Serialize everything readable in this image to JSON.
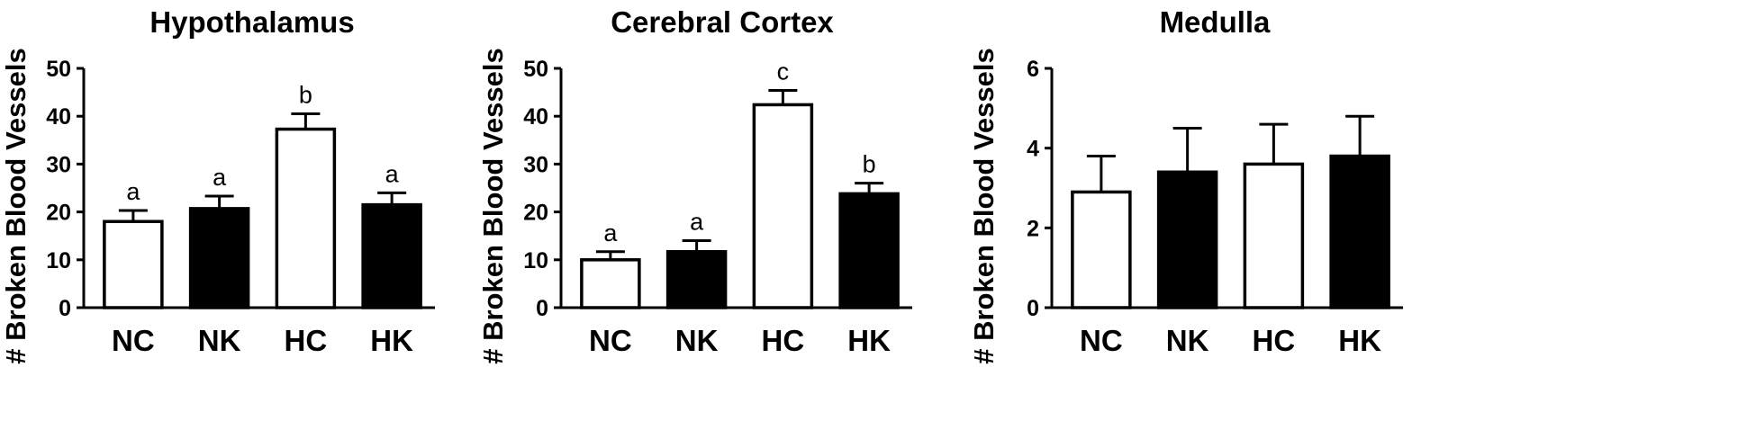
{
  "chart_data": [
    {
      "type": "bar",
      "title": "Hypothalamus",
      "xlabel": "",
      "ylabel": "# Broken Blood Vessels",
      "ylim": [
        0,
        50
      ],
      "yticks": [
        0,
        10,
        20,
        30,
        40,
        50
      ],
      "categories": [
        "NC",
        "NK",
        "HC",
        "HK"
      ],
      "values": [
        18,
        20.7,
        37.3,
        21.5
      ],
      "errors": [
        2.3,
        2.6,
        3.2,
        2.5
      ],
      "fills": [
        "white",
        "black",
        "white",
        "black"
      ],
      "annotations": [
        "a",
        "a",
        "b",
        "a"
      ],
      "grid": false
    },
    {
      "type": "bar",
      "title": "Cerebral Cortex",
      "xlabel": "",
      "ylabel": "# Broken Blood Vessels",
      "ylim": [
        0,
        50
      ],
      "yticks": [
        0,
        10,
        20,
        30,
        40,
        50
      ],
      "categories": [
        "NC",
        "NK",
        "HC",
        "HK"
      ],
      "values": [
        10,
        11.7,
        42.4,
        23.8
      ],
      "errors": [
        1.7,
        2.3,
        3,
        2.2
      ],
      "fills": [
        "white",
        "black",
        "white",
        "black"
      ],
      "annotations": [
        "a",
        "a",
        "c",
        "b"
      ],
      "grid": false
    },
    {
      "type": "bar",
      "title": "Medulla",
      "xlabel": "",
      "ylabel": "# Broken Blood Vessels",
      "ylim": [
        0,
        6
      ],
      "yticks": [
        0,
        2,
        4,
        6
      ],
      "categories": [
        "NC",
        "NK",
        "HC",
        "HK"
      ],
      "values": [
        2.9,
        3.4,
        3.6,
        3.8
      ],
      "errors": [
        0.9,
        1.1,
        1,
        1
      ],
      "fills": [
        "white",
        "black",
        "white",
        "black"
      ],
      "annotations": [
        "",
        "",
        "",
        ""
      ],
      "grid": false
    }
  ]
}
